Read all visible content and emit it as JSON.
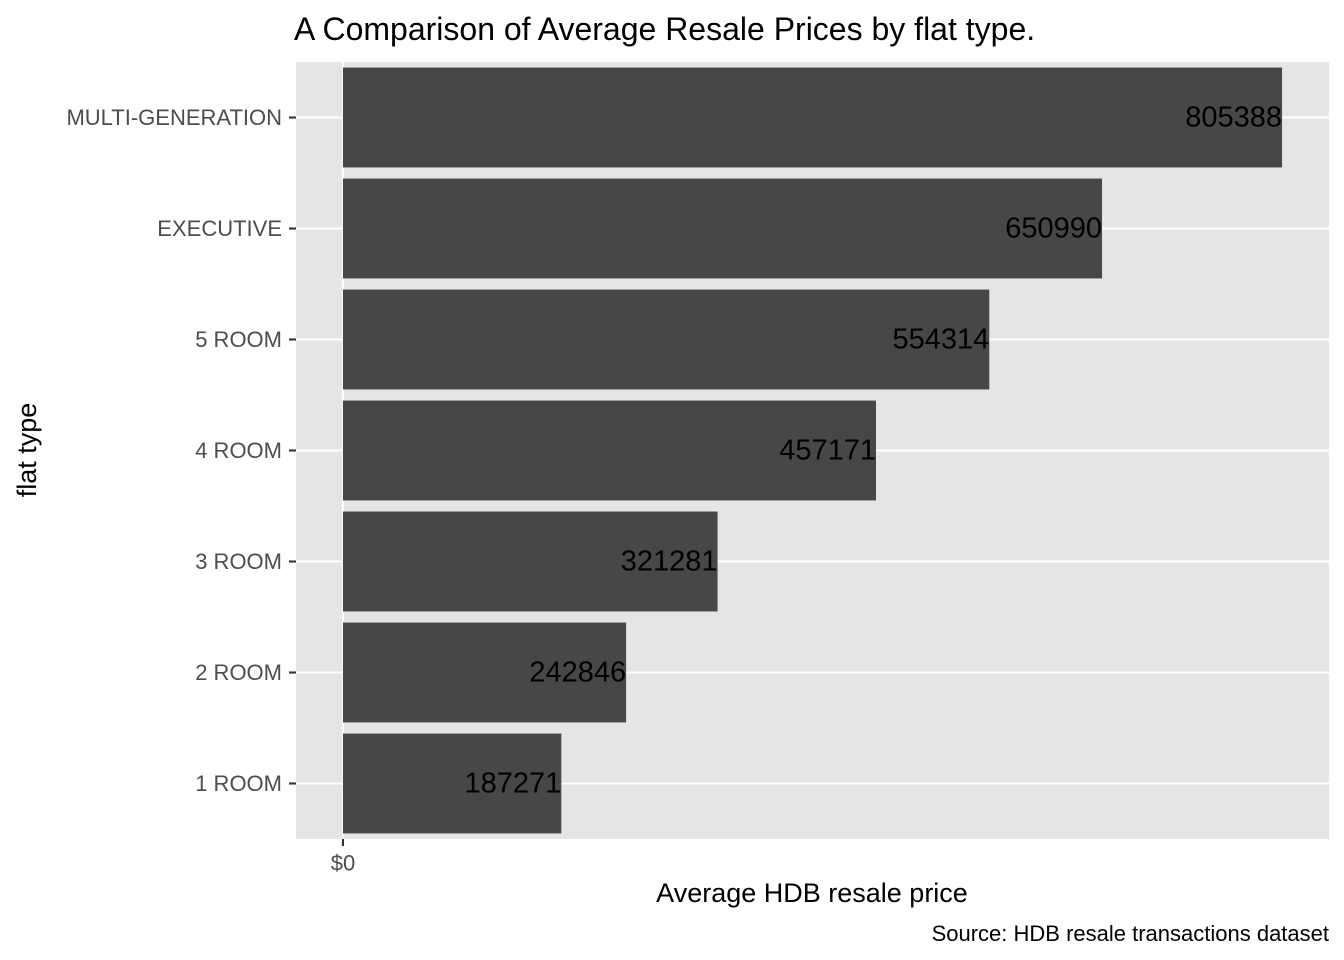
{
  "chart_data": {
    "type": "bar",
    "orientation": "horizontal",
    "title": "A Comparison of Average Resale Prices by flat type.",
    "xlabel": "Average HDB resale price",
    "ylabel": "flat type",
    "caption": "Source: HDB resale transactions dataset",
    "categories": [
      "MULTI-GENERATION",
      "EXECUTIVE",
      "5 ROOM",
      "4 ROOM",
      "3 ROOM",
      "2 ROOM",
      "1 ROOM"
    ],
    "values": [
      805388,
      650990,
      554314,
      457171,
      321281,
      242846,
      187271
    ],
    "data_labels": [
      "805388",
      "650990",
      "554314",
      "457171",
      "321281",
      "242846",
      "187271"
    ],
    "x_ticks": [
      0
    ],
    "x_tick_labels": [
      "$0"
    ],
    "xlim": [
      -40269,
      845657
    ],
    "grid": true,
    "legend": "none",
    "colors": {
      "bar": "#474747",
      "panel_background": "#e5e5e5",
      "grid": "#ffffff",
      "tick_label": "#4d4d4d",
      "tick": "#333333"
    }
  }
}
